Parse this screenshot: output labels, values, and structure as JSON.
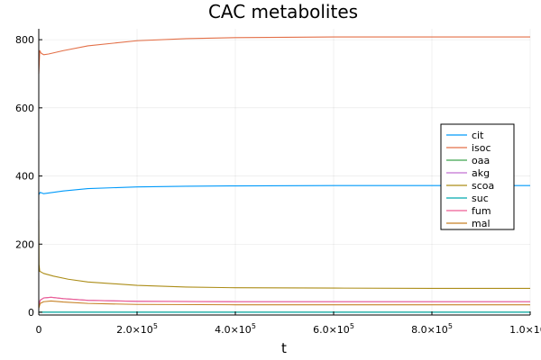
{
  "chart_data": {
    "type": "line",
    "title": "CAC metabolites",
    "xlabel": "t",
    "ylabel": "",
    "xlim": [
      0,
      1000000
    ],
    "ylim": [
      -8,
      832
    ],
    "xticks": [
      0,
      200000,
      400000,
      600000,
      800000,
      1000000
    ],
    "xtick_labels": [
      {
        "base": "0",
        "exp": ""
      },
      {
        "base": "2.0×10",
        "exp": "5"
      },
      {
        "base": "4.0×10",
        "exp": "5"
      },
      {
        "base": "6.0×10",
        "exp": "5"
      },
      {
        "base": "8.0×10",
        "exp": "5"
      },
      {
        "base": "1.0×10",
        "exp": "6"
      }
    ],
    "yticks": [
      0,
      200,
      400,
      600,
      800
    ],
    "ytick_labels": [
      "0",
      "200",
      "400",
      "600",
      "800"
    ],
    "grid": true,
    "legend_position": "right",
    "series": [
      {
        "name": "cit",
        "color": "#009AFA",
        "x": [
          0,
          3000,
          10000,
          20000,
          50000,
          100000,
          200000,
          300000,
          400000,
          600000,
          800000,
          1000000
        ],
        "y": [
          345,
          352,
          348,
          350,
          356,
          363,
          368,
          370,
          371,
          372,
          372,
          372
        ]
      },
      {
        "name": "isoc",
        "color": "#E36F47",
        "x": [
          0,
          2000,
          5000,
          10000,
          20000,
          50000,
          100000,
          200000,
          300000,
          400000,
          600000,
          800000,
          1000000
        ],
        "y": [
          700,
          768,
          760,
          756,
          758,
          768,
          782,
          797,
          803,
          806,
          808,
          808,
          808
        ]
      },
      {
        "name": "oaa",
        "color": "#3EA44E",
        "x": [
          0,
          2000,
          10000,
          100000,
          500000,
          1000000
        ],
        "y": [
          0,
          0.5,
          0.5,
          0.5,
          0.5,
          0.5
        ]
      },
      {
        "name": "akg",
        "color": "#C271D2",
        "x": [
          0,
          3000,
          10000,
          25000,
          50000,
          100000,
          200000,
          400000,
          600000,
          800000,
          1000000
        ],
        "y": [
          18,
          35,
          42,
          44,
          40,
          35,
          32,
          31,
          31,
          31,
          31
        ]
      },
      {
        "name": "scoa",
        "color": "#AC8D18",
        "x": [
          0,
          500,
          2000,
          5000,
          10000,
          30000,
          60000,
          100000,
          200000,
          300000,
          400000,
          600000,
          800000,
          1000000
        ],
        "y": [
          270,
          140,
          120,
          118,
          114,
          106,
          97,
          89,
          79,
          74,
          72,
          71,
          70,
          70
        ]
      },
      {
        "name": "suc",
        "color": "#00A9AD",
        "x": [
          0,
          10000,
          100000,
          500000,
          1000000
        ],
        "y": [
          0,
          0.2,
          0.2,
          0.2,
          0.2
        ]
      },
      {
        "name": "fum",
        "color": "#ED5E93",
        "x": [
          0,
          3000,
          10000,
          25000,
          50000,
          100000,
          200000,
          400000,
          600000,
          800000,
          1000000
        ],
        "y": [
          20,
          36,
          42,
          44,
          40,
          35,
          32,
          31,
          31,
          31,
          31
        ]
      },
      {
        "name": "mal",
        "color": "#C68125",
        "x": [
          0,
          3000,
          10000,
          25000,
          50000,
          100000,
          200000,
          400000,
          600000,
          800000,
          1000000
        ],
        "y": [
          12,
          26,
          31,
          33,
          30,
          26,
          23,
          22,
          22,
          22,
          22
        ]
      }
    ]
  }
}
